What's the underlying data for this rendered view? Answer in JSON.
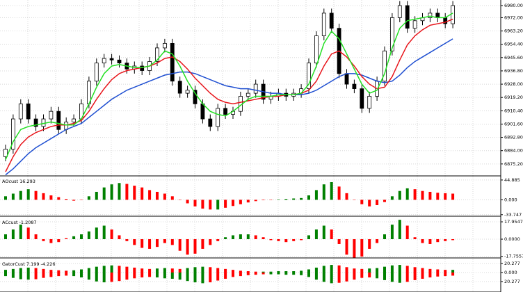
{
  "chart_data": [
    {
      "type": "candlestick",
      "open": [
        6880,
        6885,
        6905,
        6915,
        6905,
        6900,
        6905,
        6910,
        6898,
        6903,
        6905,
        6915,
        6930,
        6942,
        6945,
        6944,
        6942,
        6938,
        6940,
        6937,
        6943,
        6952,
        6955,
        6930,
        6922,
        6924,
        6915,
        6905,
        6900,
        6912,
        6908,
        6910,
        6920,
        6922,
        6928,
        6918,
        6920,
        6922,
        6920,
        6922,
        6925,
        6942,
        6960,
        6975,
        6965,
        6935,
        6928,
        6925,
        6912,
        6920,
        6930,
        6950,
        6972,
        6980,
        6965,
        6970,
        6972,
        6975,
        6972,
        6968
      ],
      "high": [
        6888,
        6908,
        6918,
        6918,
        6908,
        6908,
        6913,
        6913,
        6906,
        6908,
        6918,
        6933,
        6945,
        6948,
        6948,
        6947,
        6945,
        6943,
        6943,
        6946,
        6955,
        6958,
        6958,
        6933,
        6927,
        6927,
        6918,
        6908,
        6915,
        6915,
        6913,
        6923,
        6925,
        6931,
        6931,
        6923,
        6925,
        6925,
        6925,
        6928,
        6945,
        6963,
        6978,
        6978,
        6968,
        6938,
        6931,
        6928,
        6923,
        6933,
        6953,
        6975,
        6983,
        6983,
        6973,
        6975,
        6978,
        6978,
        6975,
        6983
      ],
      "low": [
        6877,
        6882,
        6902,
        6902,
        6897,
        6897,
        6902,
        6895,
        6895,
        6900,
        6902,
        6912,
        6927,
        6939,
        6941,
        6939,
        6935,
        6935,
        6934,
        6934,
        6940,
        6949,
        6927,
        6919,
        6919,
        6912,
        6902,
        6897,
        6897,
        6905,
        6905,
        6907,
        6917,
        6919,
        6915,
        6915,
        6917,
        6917,
        6917,
        6919,
        6922,
        6939,
        6957,
        6962,
        6932,
        6925,
        6922,
        6909,
        6909,
        6917,
        6927,
        6947,
        6969,
        6962,
        6962,
        6967,
        6969,
        6969,
        6965,
        6965
      ],
      "close": [
        6885,
        6905,
        6915,
        6905,
        6900,
        6905,
        6910,
        6898,
        6903,
        6905,
        6915,
        6930,
        6942,
        6945,
        6944,
        6942,
        6938,
        6940,
        6937,
        6943,
        6952,
        6955,
        6930,
        6922,
        6924,
        6915,
        6905,
        6900,
        6912,
        6908,
        6910,
        6920,
        6922,
        6928,
        6918,
        6920,
        6922,
        6920,
        6922,
        6925,
        6942,
        6960,
        6975,
        6965,
        6935,
        6928,
        6925,
        6912,
        6920,
        6930,
        6950,
        6972,
        6980,
        6965,
        6970,
        6972,
        6975,
        6972,
        6968,
        6980
      ],
      "up_color": "#ffffff",
      "down_color": "#000000",
      "series": [
        {
          "color": "#1f4fd1",
          "values": [
            6868,
            6872,
            6877,
            6882,
            6886,
            6889,
            6892,
            6895,
            6898,
            6900,
            6902,
            6906,
            6910,
            6914,
            6918,
            6921,
            6924,
            6926,
            6928,
            6930,
            6932,
            6934,
            6935,
            6936,
            6936,
            6935,
            6933,
            6931,
            6929,
            6927,
            6926,
            6925,
            6925,
            6924,
            6923,
            6922,
            6922,
            6921,
            6921,
            6921,
            6922,
            6924,
            6927,
            6930,
            6933,
            6935,
            6935,
            6934,
            6932,
            6930,
            6929,
            6930,
            6934,
            6939,
            6943,
            6946,
            6949,
            6952,
            6955,
            6958
          ]
        },
        {
          "color": "#e8151b",
          "values": [
            6870,
            6880,
            6888,
            6893,
            6896,
            6898,
            6900,
            6901,
            6901,
            6902,
            6904,
            6910,
            6918,
            6925,
            6931,
            6935,
            6937,
            6938,
            6939,
            6940,
            6942,
            6945,
            6946,
            6943,
            6938,
            6932,
            6927,
            6922,
            6918,
            6916,
            6915,
            6916,
            6917,
            6918,
            6919,
            6920,
            6920,
            6921,
            6921,
            6922,
            6924,
            6930,
            6940,
            6948,
            6950,
            6946,
            6940,
            6933,
            6928,
            6925,
            6926,
            6933,
            6944,
            6954,
            6960,
            6964,
            6967,
            6968,
            6969,
            6971
          ]
        },
        {
          "color": "#22e022",
          "values": [
            6878,
            6890,
            6898,
            6900,
            6901,
            6902,
            6903,
            6902,
            6901,
            6901,
            6905,
            6915,
            6926,
            6935,
            6940,
            6941,
            6940,
            6939,
            6939,
            6940,
            6944,
            6950,
            6948,
            6940,
            6930,
            6922,
            6915,
            6910,
            6908,
            6907,
            6910,
            6914,
            6918,
            6920,
            6920,
            6920,
            6921,
            6921,
            6921,
            6922,
            6928,
            6940,
            6955,
            6963,
            6958,
            6948,
            6938,
            6928,
            6922,
            6924,
            6935,
            6952,
            6965,
            6970,
            6971,
            6972,
            6973,
            6972,
            6972,
            6975
          ]
        }
      ],
      "ylim": [
        6867.3,
        6983.7
      ],
      "yticks": [
        {
          "value": 6980,
          "label": "6980.00"
        },
        {
          "value": 6972,
          "label": "6972.00"
        },
        {
          "value": 6963.2,
          "label": "6963.20"
        },
        {
          "value": 6954.4,
          "label": "6954.40"
        },
        {
          "value": 6945.6,
          "label": "6945.60"
        },
        {
          "value": 6936.8,
          "label": "6936.80"
        },
        {
          "value": 6928,
          "label": "6928.00"
        },
        {
          "value": 6919.2,
          "label": "6919.20"
        },
        {
          "value": 6910.4,
          "label": "6910.40"
        },
        {
          "value": 6901.6,
          "label": "6901.60"
        },
        {
          "value": 6892.8,
          "label": "6892.80"
        },
        {
          "value": 6884,
          "label": "6884.00"
        },
        {
          "value": 6875.2,
          "label": "6875.20"
        }
      ],
      "grid": true
    },
    {
      "type": "bar",
      "title": "AOcust 16.293",
      "series": [
        {
          "values": [
            8,
            14,
            20,
            24,
            20,
            15,
            10,
            6,
            2,
            -2,
            0,
            8,
            18,
            28,
            35,
            38,
            36,
            32,
            28,
            22,
            18,
            14,
            8,
            0,
            -8,
            -15,
            -20,
            -22,
            -22,
            -18,
            -14,
            -10,
            -6,
            -3,
            -1,
            0,
            1,
            2,
            3,
            4,
            10,
            22,
            35,
            40,
            30,
            15,
            0,
            -10,
            -15,
            -12,
            -5,
            8,
            20,
            26,
            24,
            20,
            18,
            16,
            15,
            14
          ]
        }
      ],
      "up_color": "#008000",
      "down_color": "#ff0000",
      "ylim": [
        -37.2,
        52.6
      ],
      "yticks": [
        44.885,
        {
          "value": 0,
          "label": "0.000"
        },
        -33.747
      ],
      "grid": true
    },
    {
      "type": "bar",
      "title": "ACcust -1.2087",
      "series": [
        {
          "values": [
            5,
            10,
            15,
            12,
            5,
            -2,
            -4,
            -3,
            1,
            3,
            5,
            8,
            12,
            14,
            10,
            4,
            -2,
            -6,
            -9,
            -10,
            -8,
            -4,
            -6,
            -12,
            -16,
            -15,
            -10,
            -6,
            -2,
            2,
            4,
            5,
            5,
            4,
            2,
            -1,
            -2,
            -3,
            -2,
            -1,
            4,
            10,
            14,
            10,
            -5,
            -16,
            -20,
            -18,
            -10,
            -4,
            5,
            15,
            20,
            14,
            2,
            -4,
            -5,
            -3,
            -2,
            -1
          ]
        }
      ],
      "up_color": "#008000",
      "down_color": "#ff0000",
      "ylim": [
        -19.4,
        22.3
      ],
      "yticks": [
        17.9547,
        {
          "value": 0,
          "label": "0.0000"
        },
        -17.7557
      ],
      "grid": true
    },
    {
      "type": "bar",
      "title": "GatorCust 7.199 -4.226",
      "series": [
        {
          "values": [
            6,
            8,
            10,
            11,
            10,
            8,
            6,
            5,
            4,
            5,
            7,
            10,
            13,
            15,
            16,
            15,
            13,
            11,
            9,
            8,
            9,
            10,
            9,
            8,
            10,
            12,
            13,
            12,
            10,
            8,
            6,
            4,
            3,
            2,
            2,
            2,
            3,
            3,
            3,
            4,
            7,
            11,
            15,
            17,
            16,
            12,
            9,
            8,
            9,
            10,
            13,
            16,
            17,
            15,
            12,
            10,
            8,
            7,
            6,
            6
          ]
        },
        {
          "values": [
            -8,
            -12,
            -15,
            -16,
            -15,
            -12,
            -10,
            -8,
            -7,
            -8,
            -11,
            -16,
            -20,
            -22,
            -21,
            -19,
            -16,
            -13,
            -11,
            -10,
            -11,
            -13,
            -14,
            -16,
            -19,
            -22,
            -24,
            -22,
            -18,
            -14,
            -10,
            -8,
            -6,
            -5,
            -4,
            -4,
            -4,
            -5,
            -5,
            -6,
            -10,
            -16,
            -21,
            -24,
            -23,
            -20,
            -16,
            -12,
            -11,
            -13,
            -17,
            -21,
            -23,
            -21,
            -17,
            -14,
            -11,
            -9,
            -8,
            -7
          ]
        }
      ],
      "up_color": "#008000",
      "down_color": "#ff0000",
      "ylim": [
        -43.7,
        29.6
      ],
      "yticks": [
        20.277,
        {
          "value": 0,
          "label": "0.000"
        },
        {
          "value": -20.277,
          "label": "20.277"
        }
      ],
      "grid": true
    }
  ]
}
